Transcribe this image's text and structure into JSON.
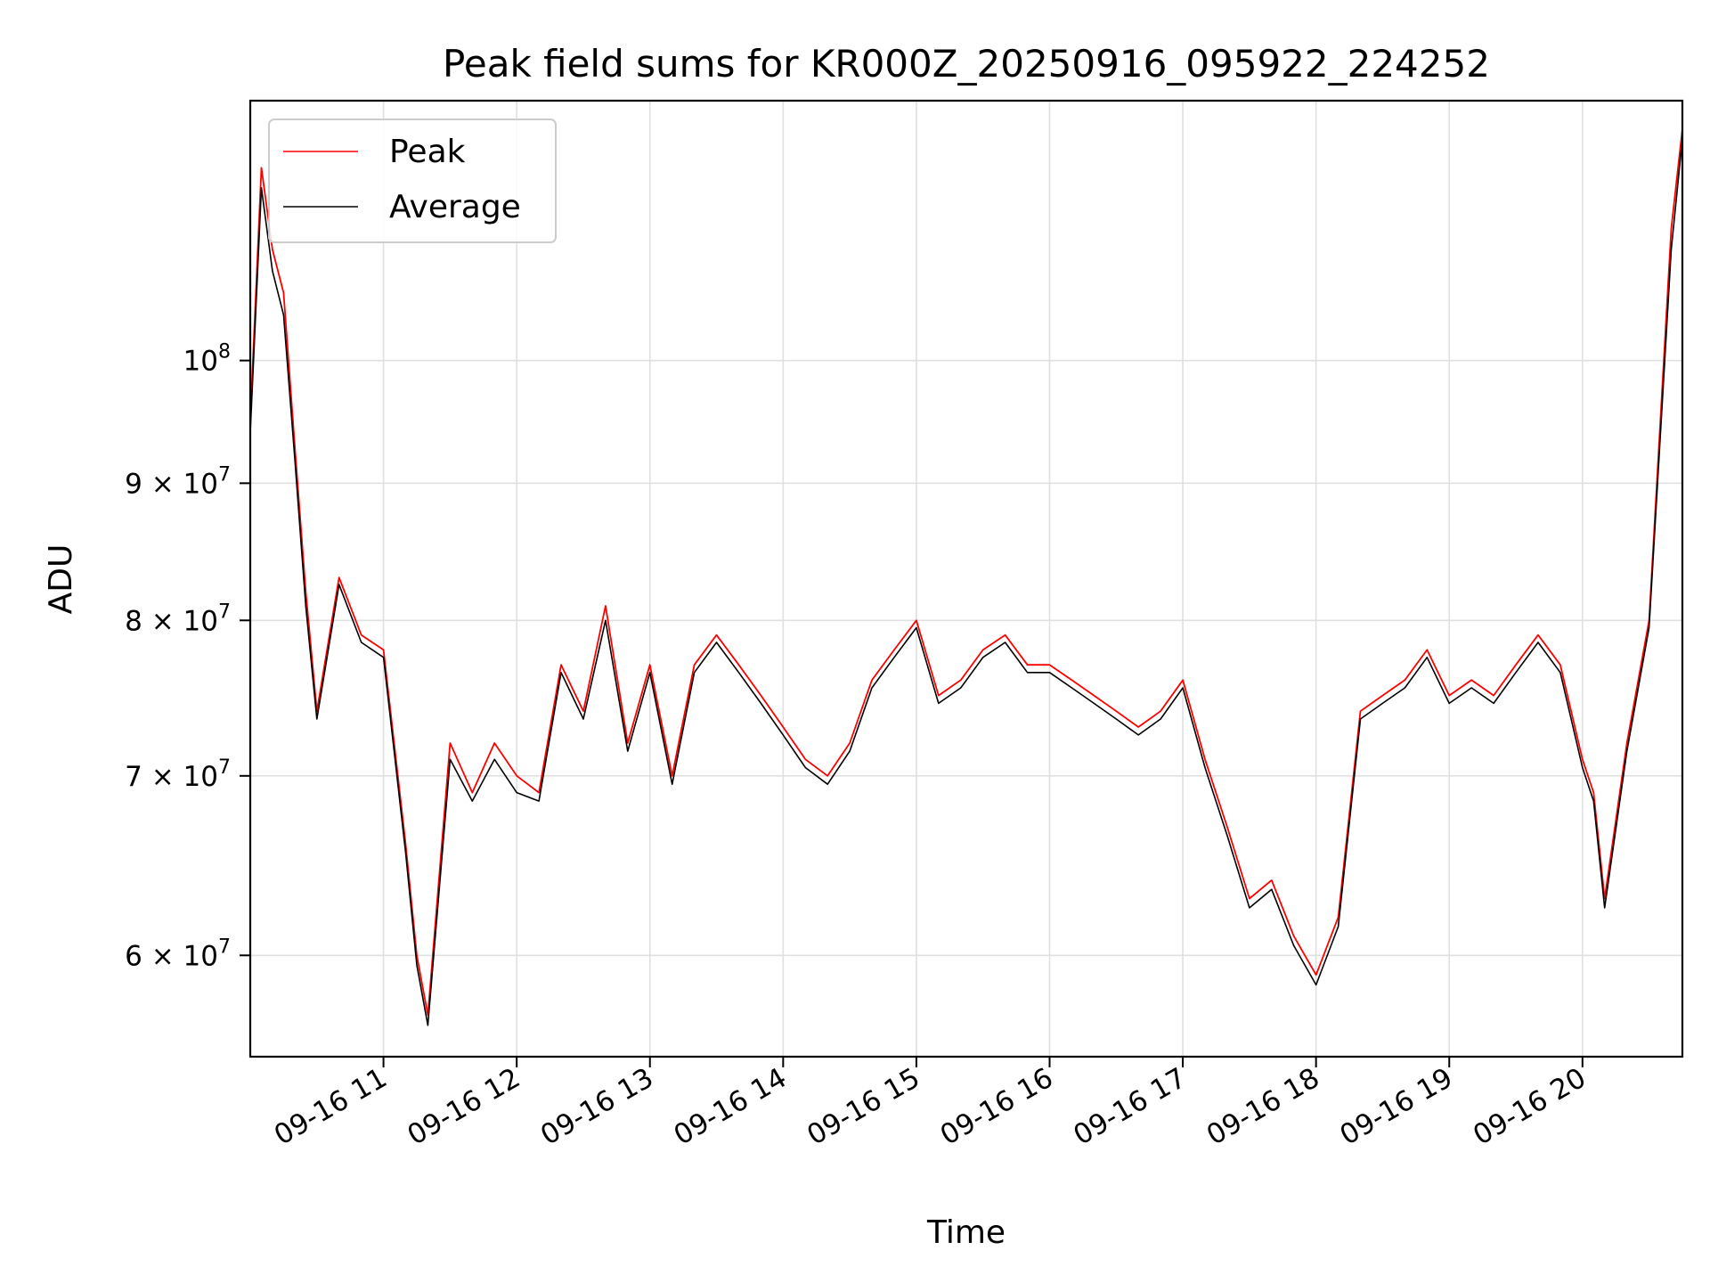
{
  "chart_data": {
    "type": "line",
    "title": "Peak field sums for KR000Z_20250916_095922_224252",
    "xlabel": "Time",
    "ylabel": "ADU",
    "yscale": "log",
    "ylim": [
      55000000,
      125000000
    ],
    "xlim": [
      "2025-09-16 10:00",
      "2025-09-16 20:45"
    ],
    "grid": true,
    "legend_position": "top-left",
    "x_tick_labels": [
      "09-16 11",
      "09-16 12",
      "09-16 13",
      "09-16 14",
      "09-16 15",
      "09-16 16",
      "09-16 17",
      "09-16 18",
      "09-16 19",
      "09-16 20"
    ],
    "y_tick_labels": [
      {
        "value": 60000000,
        "mantissa": "6",
        "exp": "7"
      },
      {
        "value": 70000000,
        "mantissa": "7",
        "exp": "7"
      },
      {
        "value": 80000000,
        "mantissa": "8",
        "exp": "7"
      },
      {
        "value": 90000000,
        "mantissa": "9",
        "exp": "7"
      },
      {
        "value": 100000000,
        "mantissa": "",
        "exp": "8"
      }
    ],
    "x": [
      "10:00",
      "10:05",
      "10:10",
      "10:15",
      "10:20",
      "10:25",
      "10:30",
      "10:40",
      "10:50",
      "11:00",
      "11:10",
      "11:15",
      "11:20",
      "11:30",
      "11:40",
      "11:50",
      "12:00",
      "12:10",
      "12:20",
      "12:30",
      "12:40",
      "12:50",
      "13:00",
      "13:10",
      "13:20",
      "13:30",
      "13:40",
      "13:50",
      "14:00",
      "14:10",
      "14:20",
      "14:30",
      "14:40",
      "14:50",
      "15:00",
      "15:10",
      "15:20",
      "15:30",
      "15:40",
      "15:50",
      "16:00",
      "16:10",
      "16:20",
      "16:30",
      "16:40",
      "16:50",
      "17:00",
      "17:10",
      "17:20",
      "17:30",
      "17:40",
      "17:50",
      "18:00",
      "18:10",
      "18:20",
      "18:30",
      "18:40",
      "18:50",
      "19:00",
      "19:10",
      "19:20",
      "19:30",
      "19:40",
      "19:50",
      "20:00",
      "20:05",
      "20:10",
      "20:20",
      "20:30",
      "20:40",
      "20:45"
    ],
    "series": [
      {
        "name": "Peak",
        "color": "#ff0000",
        "values": [
          95000000,
          118000000,
          110000000,
          106000000,
          93000000,
          82000000,
          74000000,
          83000000,
          79000000,
          78000000,
          66000000,
          60000000,
          57000000,
          72000000,
          69000000,
          72000000,
          70000000,
          69000000,
          77000000,
          74000000,
          81000000,
          72000000,
          77000000,
          70000000,
          77000000,
          79000000,
          77000000,
          75000000,
          73000000,
          71000000,
          70000000,
          72000000,
          76000000,
          78000000,
          80000000,
          75000000,
          76000000,
          78000000,
          79000000,
          77000000,
          77000000,
          76000000,
          75000000,
          74000000,
          73000000,
          74000000,
          76000000,
          71000000,
          67000000,
          63000000,
          64000000,
          61000000,
          59000000,
          62000000,
          74000000,
          75000000,
          76000000,
          78000000,
          75000000,
          76000000,
          75000000,
          77000000,
          79000000,
          77000000,
          71000000,
          69000000,
          63000000,
          72000000,
          80000000,
          112000000,
          122000000
        ]
      },
      {
        "name": "Average",
        "color": "#000000",
        "values": [
          94000000,
          116000000,
          108000000,
          104000000,
          92000000,
          81000000,
          73500000,
          82500000,
          78500000,
          77500000,
          65500000,
          59500000,
          56500000,
          71000000,
          68500000,
          71000000,
          69000000,
          68500000,
          76500000,
          73500000,
          80000000,
          71500000,
          76500000,
          69500000,
          76500000,
          78500000,
          76500000,
          74500000,
          72500000,
          70500000,
          69500000,
          71500000,
          75500000,
          77500000,
          79500000,
          74500000,
          75500000,
          77500000,
          78500000,
          76500000,
          76500000,
          75500000,
          74500000,
          73500000,
          72500000,
          73500000,
          75500000,
          70500000,
          66500000,
          62500000,
          63500000,
          60500000,
          58500000,
          61500000,
          73500000,
          74500000,
          75500000,
          77500000,
          74500000,
          75500000,
          74500000,
          76500000,
          78500000,
          76500000,
          70500000,
          68500000,
          62500000,
          71500000,
          79500000,
          110000000,
          121000000
        ]
      }
    ]
  }
}
